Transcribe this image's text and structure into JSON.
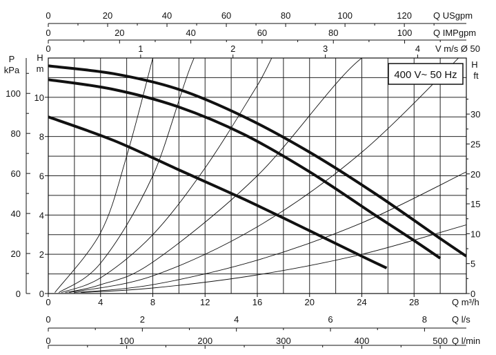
{
  "chart_data": {
    "type": "line",
    "title": "",
    "annotation": "400 V~ 50 Hz",
    "primary_x": {
      "label": "Q m³/h",
      "range": [
        0,
        32
      ],
      "ticks": [
        0,
        4,
        8,
        12,
        16,
        20,
        24,
        28
      ]
    },
    "primary_y": {
      "label": "H m",
      "range": [
        0,
        12
      ],
      "ticks": [
        0,
        2,
        4,
        6,
        8,
        10
      ]
    },
    "secondary_axes": {
      "top": [
        {
          "label": "Q USgpm",
          "ticks": [
            0,
            20,
            40,
            60,
            80,
            100,
            120
          ],
          "factor": 4.4029
        },
        {
          "label": "Q IMPgpm",
          "ticks": [
            0,
            20,
            40,
            60,
            80,
            100
          ],
          "factor": 3.6662
        },
        {
          "label": "V m/s Ø 50",
          "ticks": [
            1,
            2,
            3,
            4
          ],
          "factor": 0.14147
        }
      ],
      "bottom": [
        {
          "label": "Q l/s",
          "ticks": [
            0,
            2,
            4,
            6,
            8
          ],
          "factor": 0.27778
        },
        {
          "label": "Q l/min",
          "ticks": [
            0,
            100,
            200,
            300,
            400,
            500
          ],
          "factor": 16.6667
        }
      ],
      "left": {
        "label": "P kPa",
        "ticks": [
          0,
          20,
          40,
          60,
          80,
          100
        ],
        "factor": 9.8067
      },
      "right": {
        "label": "H ft",
        "ticks": [
          0,
          5,
          10,
          15,
          20,
          25,
          30
        ],
        "factor": 3.2808
      }
    },
    "grid": true,
    "legend": "none",
    "series": [
      {
        "points": [
          [
            0,
            11.6
          ],
          [
            5,
            11.2
          ],
          [
            10,
            10.4
          ],
          [
            15,
            9.0
          ],
          [
            20,
            7.2
          ],
          [
            25,
            5.1
          ],
          [
            30,
            2.8
          ],
          [
            32,
            1.9
          ]
        ]
      },
      {
        "points": [
          [
            0,
            10.9
          ],
          [
            5,
            10.4
          ],
          [
            10,
            9.5
          ],
          [
            15,
            8.1
          ],
          [
            20,
            6.2
          ],
          [
            25,
            4.0
          ],
          [
            28,
            2.7
          ],
          [
            30,
            1.8
          ]
        ]
      },
      {
        "points": [
          [
            0,
            9.0
          ],
          [
            5,
            7.8
          ],
          [
            10,
            6.3
          ],
          [
            15,
            4.8
          ],
          [
            20,
            3.2
          ],
          [
            24,
            1.9
          ],
          [
            25.9,
            1.3
          ]
        ]
      }
    ],
    "system_curves": [
      {
        "points": [
          [
            0.5,
            0.05
          ],
          [
            4,
            3.1
          ],
          [
            6,
            7.0
          ],
          [
            8,
            12.0
          ]
        ]
      },
      {
        "points": [
          [
            0.8,
            0.05
          ],
          [
            4,
            1.55
          ],
          [
            8,
            6.0
          ],
          [
            12,
            13.0
          ],
          [
            16,
            12.0
          ]
        ]
      },
      {
        "points": [
          [
            1.0,
            0.05
          ],
          [
            4,
            0.8
          ],
          [
            8,
            3.0
          ],
          [
            12,
            6.4
          ],
          [
            16,
            10.6
          ],
          [
            20,
            15.0
          ],
          [
            24,
            12.0
          ]
        ]
      },
      {
        "points": [
          [
            1.3,
            0.05
          ],
          [
            4,
            0.45
          ],
          [
            8,
            1.6
          ],
          [
            16,
            6.0
          ],
          [
            24,
            12.0
          ],
          [
            28,
            12.0
          ]
        ]
      },
      {
        "points": [
          [
            1.6,
            0.05
          ],
          [
            8,
            0.9
          ],
          [
            16,
            3.4
          ],
          [
            24,
            7.2
          ],
          [
            32,
            12.4
          ]
        ]
      },
      {
        "points": [
          [
            2.0,
            0.05
          ],
          [
            8,
            0.45
          ],
          [
            16,
            1.7
          ],
          [
            24,
            3.6
          ],
          [
            32,
            6.2
          ]
        ]
      },
      {
        "points": [
          [
            2.5,
            0.05
          ],
          [
            8,
            0.28
          ],
          [
            16,
            0.95
          ],
          [
            24,
            2.0
          ],
          [
            32,
            3.5
          ]
        ]
      }
    ]
  }
}
